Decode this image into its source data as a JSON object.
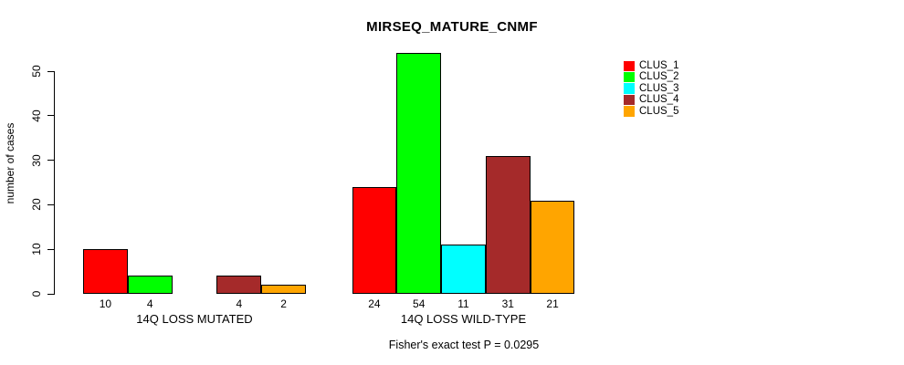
{
  "chart_data": {
    "type": "bar",
    "title": "MIRSEQ_MATURE_CNMF",
    "xlabel": "",
    "ylabel": "number of cases",
    "annotation": "Fisher's exact test P = 0.0295",
    "ylim": [
      0,
      55
    ],
    "yticks": [
      0,
      10,
      20,
      30,
      40,
      50
    ],
    "grid": false,
    "legend_position": "top-right",
    "categories": [
      "14Q LOSS MUTATED",
      "14Q LOSS WILD-TYPE"
    ],
    "series": [
      {
        "name": "CLUS_1",
        "color": "#FF0000",
        "values": [
          10,
          24
        ]
      },
      {
        "name": "CLUS_2",
        "color": "#00FF00",
        "values": [
          4,
          54
        ]
      },
      {
        "name": "CLUS_3",
        "color": "#00FFFF",
        "values": [
          0,
          11
        ]
      },
      {
        "name": "CLUS_4",
        "color": "#A52A2A",
        "values": [
          4,
          31
        ]
      },
      {
        "name": "CLUS_5",
        "color": "#FFA500",
        "values": [
          2,
          21
        ]
      }
    ],
    "bar_value_labels": [
      [
        "10",
        "4",
        "",
        "4",
        "2"
      ],
      [
        "24",
        "54",
        "11",
        "31",
        "21"
      ]
    ]
  }
}
